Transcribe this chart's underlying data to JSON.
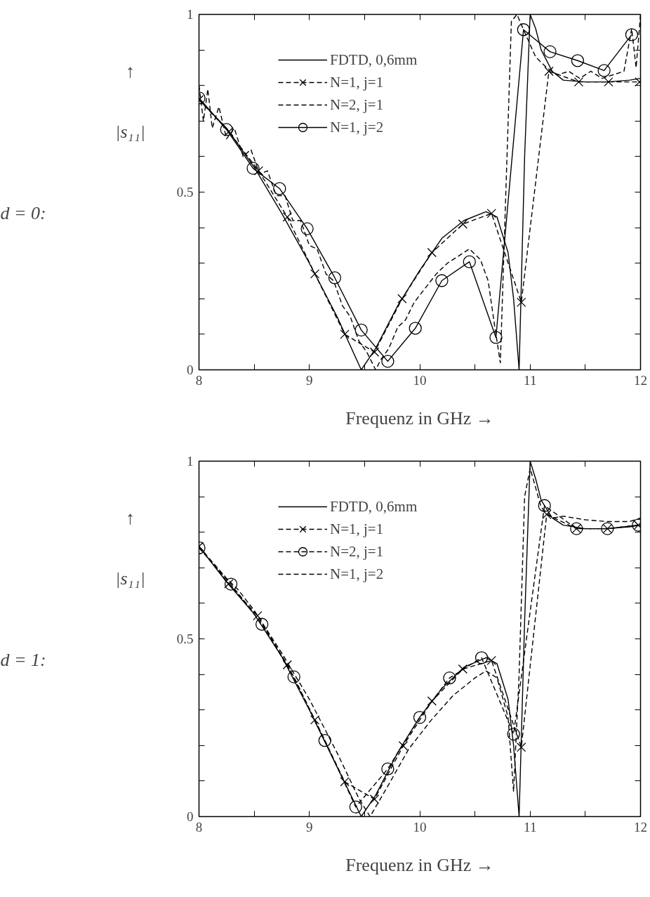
{
  "chart_data": [
    {
      "type": "line",
      "xlabel": "Frequenz in GHz →",
      "ylabel": "↑ |s₁₁|",
      "annotations": [
        "d = 0:"
      ],
      "xlim": [
        8,
        12
      ],
      "ylim": [
        0,
        1
      ],
      "xticks": [
        8,
        {
          "value": 8.5,
          "label": null
        },
        9,
        {
          "value": 9.5,
          "label": null
        },
        10,
        {
          "value": 10.5,
          "label": null
        },
        11,
        {
          "value": 11.5,
          "label": null
        },
        12
      ],
      "yticks": [
        0,
        {
          "value": 0.1,
          "label": null
        },
        {
          "value": 0.2,
          "label": null
        },
        {
          "value": 0.3,
          "label": null
        },
        {
          "value": 0.4,
          "label": null
        },
        0.5,
        {
          "value": 0.6,
          "label": null
        },
        {
          "value": 0.7,
          "label": null
        },
        {
          "value": 0.8,
          "label": null
        },
        {
          "value": 0.9,
          "label": null
        },
        1
      ],
      "grid": false,
      "legend": "top",
      "series": [
        {
          "name": "FDTD, 0,6mm",
          "color": "#000000",
          "marker": "none",
          "line_style": "solid",
          "x": [
            8.0,
            8.25,
            8.5,
            8.75,
            9.0,
            9.25,
            9.47,
            9.6,
            9.8,
            10.0,
            10.2,
            10.4,
            10.6,
            10.7,
            10.8,
            10.85,
            10.9,
            10.95,
            11.0,
            11.05,
            11.1,
            11.2,
            11.3,
            11.5,
            11.7,
            11.9,
            12.0
          ],
          "values": [
            0.76,
            0.68,
            0.57,
            0.44,
            0.3,
            0.15,
            0.0,
            0.06,
            0.18,
            0.28,
            0.37,
            0.42,
            0.445,
            0.43,
            0.33,
            0.2,
            0.0,
            0.6,
            1.0,
            0.96,
            0.9,
            0.84,
            0.815,
            0.81,
            0.81,
            0.815,
            0.82
          ]
        },
        {
          "name": "N=1, j=1",
          "color": "#000000",
          "marker": "cross",
          "line_style": "dashed",
          "x": [
            8.0,
            8.27,
            8.54,
            8.8,
            9.05,
            9.32,
            9.59,
            9.84,
            10.11,
            10.39,
            10.65,
            10.92,
            11.17,
            11.44,
            11.71,
            11.99
          ],
          "values": [
            0.76,
            0.67,
            0.56,
            0.43,
            0.27,
            0.1,
            0.05,
            0.2,
            0.33,
            0.41,
            0.44,
            0.19,
            0.84,
            0.81,
            0.81,
            0.81
          ]
        },
        {
          "name": "N=2, j=1",
          "color": "#000000",
          "marker": "none",
          "line_style": "dashed",
          "x": [
            8.0,
            8.04,
            8.08,
            8.12,
            8.18,
            8.25,
            8.32,
            8.4,
            8.47,
            8.55,
            8.62,
            8.7,
            8.78,
            8.85,
            8.92,
            9.0,
            9.07,
            9.15,
            9.22,
            9.3,
            9.37,
            9.45,
            9.52,
            9.6,
            9.65,
            9.72,
            9.8,
            9.87,
            9.95,
            10.05,
            10.15,
            10.25,
            10.35,
            10.45,
            10.55,
            10.62,
            10.68,
            10.73,
            10.78,
            10.83,
            10.88,
            10.95,
            11.05,
            11.15,
            11.25,
            11.35,
            11.45,
            11.55,
            11.65,
            11.75,
            11.85,
            11.92,
            11.96,
            12.0
          ],
          "values": [
            0.8,
            0.7,
            0.79,
            0.68,
            0.74,
            0.65,
            0.68,
            0.6,
            0.62,
            0.55,
            0.56,
            0.49,
            0.49,
            0.42,
            0.42,
            0.35,
            0.34,
            0.27,
            0.25,
            0.18,
            0.15,
            0.08,
            0.05,
            0.0,
            0.03,
            0.06,
            0.12,
            0.14,
            0.19,
            0.23,
            0.27,
            0.3,
            0.32,
            0.34,
            0.31,
            0.25,
            0.12,
            0.02,
            0.5,
            0.98,
            1.0,
            0.95,
            0.88,
            0.85,
            0.83,
            0.84,
            0.82,
            0.84,
            0.82,
            0.83,
            0.84,
            0.96,
            0.85,
            1.0
          ]
        },
        {
          "name": "N=1, j=2",
          "color": "#000000",
          "marker": "circle",
          "line_style": "solid",
          "x": [
            8.0,
            8.25,
            8.49,
            8.73,
            8.98,
            9.23,
            9.47,
            9.71,
            9.96,
            10.2,
            10.45,
            10.69,
            10.94,
            11.18,
            11.43,
            11.67,
            11.92
          ],
          "values": [
            0.765,
            0.676,
            0.567,
            0.51,
            0.397,
            0.259,
            0.112,
            0.024,
            0.117,
            0.251,
            0.304,
            0.091,
            0.957,
            0.895,
            0.87,
            0.842,
            0.943
          ]
        }
      ]
    },
    {
      "type": "line",
      "xlabel": "Frequenz in GHz →",
      "ylabel": "↑ |s₁₁|",
      "annotations": [
        "d = 1:"
      ],
      "xlim": [
        8,
        12
      ],
      "ylim": [
        0,
        1
      ],
      "xticks": [
        8,
        {
          "value": 8.5,
          "label": null
        },
        9,
        {
          "value": 9.5,
          "label": null
        },
        10,
        {
          "value": 10.5,
          "label": null
        },
        11,
        {
          "value": 11.5,
          "label": null
        },
        12
      ],
      "yticks": [
        0,
        {
          "value": 0.1,
          "label": null
        },
        {
          "value": 0.2,
          "label": null
        },
        {
          "value": 0.3,
          "label": null
        },
        {
          "value": 0.4,
          "label": null
        },
        0.5,
        {
          "value": 0.6,
          "label": null
        },
        {
          "value": 0.7,
          "label": null
        },
        {
          "value": 0.8,
          "label": null
        },
        {
          "value": 0.9,
          "label": null
        },
        1
      ],
      "grid": false,
      "legend": "top",
      "series": [
        {
          "name": "FDTD, 0,6mm",
          "color": "#000000",
          "marker": "none",
          "line_style": "solid",
          "x": [
            8.0,
            8.25,
            8.5,
            8.75,
            9.0,
            9.25,
            9.47,
            9.6,
            9.8,
            10.0,
            10.2,
            10.4,
            10.6,
            10.7,
            10.8,
            10.85,
            10.9,
            10.95,
            11.0,
            11.05,
            11.1,
            11.2,
            11.3,
            11.5,
            11.7,
            11.9,
            12.0
          ],
          "values": [
            0.76,
            0.66,
            0.57,
            0.45,
            0.3,
            0.14,
            0.0,
            0.06,
            0.18,
            0.28,
            0.36,
            0.42,
            0.447,
            0.43,
            0.33,
            0.2,
            0.0,
            0.55,
            1.0,
            0.95,
            0.89,
            0.84,
            0.82,
            0.81,
            0.81,
            0.815,
            0.82
          ]
        },
        {
          "name": "N=1, j=1",
          "color": "#000000",
          "marker": "cross",
          "line_style": "dashed",
          "x": [
            8.0,
            8.27,
            8.53,
            8.8,
            9.05,
            9.32,
            9.59,
            9.85,
            10.11,
            10.39,
            10.65,
            10.92,
            11.15,
            11.42,
            11.7,
            11.98
          ],
          "values": [
            0.76,
            0.655,
            0.565,
            0.427,
            0.272,
            0.098,
            0.049,
            0.199,
            0.325,
            0.415,
            0.439,
            0.195,
            0.85,
            0.81,
            0.81,
            0.82
          ]
        },
        {
          "name": "N=2, j=1",
          "color": "#000000",
          "marker": "circle",
          "line_style": "dashed",
          "x": [
            8.0,
            8.29,
            8.57,
            8.86,
            9.14,
            9.42,
            9.71,
            10.0,
            10.27,
            10.56,
            10.85,
            11.13,
            11.42,
            11.7,
            11.98
          ],
          "values": [
            0.756,
            0.654,
            0.541,
            0.393,
            0.214,
            0.027,
            0.134,
            0.279,
            0.39,
            0.447,
            0.232,
            0.875,
            0.81,
            0.81,
            0.82
          ]
        },
        {
          "name": "N=1, j=2",
          "color": "#000000",
          "marker": "none",
          "line_style": "dashed",
          "x": [
            8.0,
            8.25,
            8.35,
            8.5,
            8.75,
            9.0,
            9.25,
            9.45,
            9.55,
            9.7,
            9.9,
            10.1,
            10.3,
            10.5,
            10.6,
            10.7,
            10.8,
            10.85,
            10.9,
            10.95,
            11.0,
            11.1,
            11.2,
            11.3,
            11.4,
            11.5,
            11.7,
            11.9,
            12.0
          ],
          "values": [
            0.76,
            0.67,
            0.64,
            0.58,
            0.46,
            0.33,
            0.18,
            0.05,
            0.0,
            0.08,
            0.19,
            0.27,
            0.34,
            0.39,
            0.41,
            0.39,
            0.28,
            0.07,
            0.4,
            0.9,
            0.98,
            0.87,
            0.84,
            0.845,
            0.84,
            0.835,
            0.83,
            0.83,
            0.84
          ]
        }
      ]
    }
  ]
}
